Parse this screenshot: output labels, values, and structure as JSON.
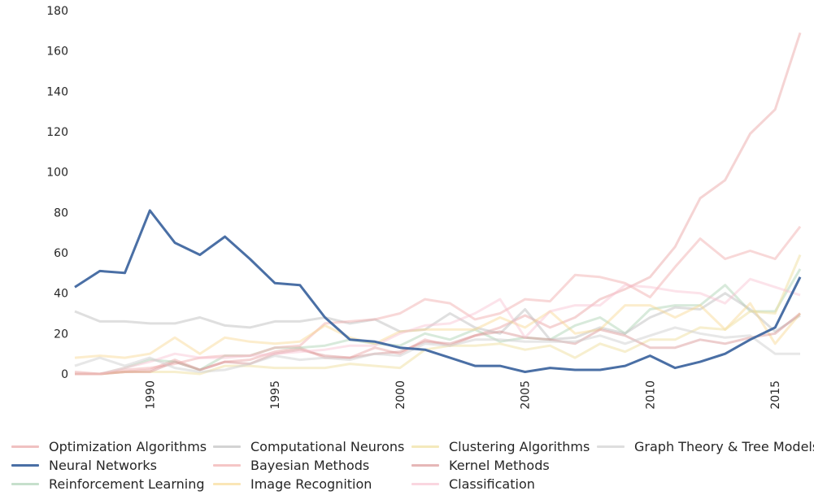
{
  "chart_data": {
    "type": "line",
    "x": [
      1987,
      1988,
      1989,
      1990,
      1991,
      1992,
      1993,
      1994,
      1995,
      1996,
      1997,
      1998,
      1999,
      2000,
      2001,
      2002,
      2003,
      2004,
      2005,
      2006,
      2007,
      2008,
      2009,
      2010,
      2011,
      2012,
      2013,
      2014,
      2015,
      2016
    ],
    "xticks": [
      "1990",
      "1995",
      "2000",
      "2005",
      "2010",
      "2015"
    ],
    "xlim": [
      1987,
      2016
    ],
    "ylim": [
      0,
      180
    ],
    "yticks": [
      "0",
      "20",
      "40",
      "60",
      "80",
      "100",
      "120",
      "140",
      "160",
      "180"
    ],
    "grid": false,
    "legend_position": "bottom",
    "series": [
      {
        "name": "Optimization Algorithms",
        "color": "#e8a0a0",
        "opacity": 0.45,
        "highlight": false,
        "values": [
          1,
          0,
          1,
          2,
          7,
          2,
          6,
          7,
          11,
          13,
          8,
          8,
          13,
          10,
          17,
          14,
          19,
          23,
          29,
          23,
          28,
          37,
          42,
          48,
          63,
          87,
          96,
          119,
          131,
          169
        ]
      },
      {
        "name": "Neural Networks",
        "color": "#4a6fa5",
        "opacity": 1,
        "highlight": true,
        "values": [
          43,
          51,
          50,
          81,
          65,
          59,
          68,
          57,
          45,
          44,
          28,
          17,
          16,
          13,
          12,
          8,
          4,
          4,
          1,
          3,
          2,
          2,
          4,
          9,
          3,
          6,
          10,
          17,
          23,
          48
        ]
      },
      {
        "name": "Reinforcement Learning",
        "color": "#a8d0b0",
        "opacity": 0.45,
        "highlight": false,
        "values": [
          0,
          0,
          3,
          7,
          6,
          2,
          9,
          9,
          13,
          13,
          14,
          17,
          15,
          14,
          20,
          17,
          22,
          16,
          18,
          17,
          24,
          28,
          20,
          32,
          34,
          34,
          44,
          31,
          31,
          52
        ]
      },
      {
        "name": "Computational Neurons",
        "color": "#c0c0c0",
        "opacity": 0.5,
        "highlight": false,
        "values": [
          31,
          26,
          26,
          25,
          25,
          28,
          24,
          23,
          26,
          26,
          28,
          25,
          27,
          21,
          22,
          30,
          23,
          20,
          32,
          17,
          18,
          23,
          20,
          28,
          33,
          32,
          40,
          32,
          21,
          29
        ]
      },
      {
        "name": "Bayesian Methods",
        "color": "#f0a8a8",
        "opacity": 0.45,
        "highlight": false,
        "values": [
          0,
          0,
          2,
          3,
          5,
          8,
          9,
          9,
          13,
          14,
          25,
          26,
          27,
          30,
          37,
          35,
          27,
          30,
          37,
          36,
          49,
          48,
          45,
          38,
          53,
          67,
          57,
          61,
          57,
          73
        ]
      },
      {
        "name": "Image Recognition",
        "color": "#f8d890",
        "opacity": 0.45,
        "highlight": false,
        "values": [
          8,
          9,
          8,
          10,
          18,
          10,
          18,
          16,
          15,
          16,
          24,
          18,
          15,
          21,
          22,
          22,
          22,
          28,
          23,
          31,
          20,
          22,
          34,
          34,
          28,
          34,
          22,
          35,
          15,
          30
        ]
      },
      {
        "name": "Clustering Algorithms",
        "color": "#f0e0a0",
        "opacity": 0.5,
        "highlight": false,
        "values": [
          0,
          0,
          1,
          1,
          1,
          0,
          4,
          4,
          3,
          3,
          3,
          5,
          4,
          3,
          12,
          14,
          14,
          15,
          12,
          14,
          8,
          15,
          11,
          17,
          17,
          23,
          22,
          31,
          30,
          59
        ]
      },
      {
        "name": "Kernel Methods",
        "color": "#d89090",
        "opacity": 0.45,
        "highlight": false,
        "values": [
          0,
          0,
          1,
          1,
          6,
          2,
          6,
          5,
          10,
          12,
          9,
          8,
          10,
          11,
          16,
          15,
          19,
          21,
          18,
          17,
          15,
          22,
          19,
          13,
          13,
          17,
          15,
          18,
          20,
          30
        ]
      },
      {
        "name": "Classification",
        "color": "#f8c0d0",
        "opacity": 0.45,
        "highlight": false,
        "values": [
          0,
          0,
          3,
          6,
          10,
          8,
          8,
          9,
          10,
          11,
          12,
          14,
          14,
          20,
          24,
          25,
          30,
          37,
          18,
          31,
          34,
          34,
          44,
          43,
          41,
          40,
          35,
          47,
          43,
          39
        ]
      },
      {
        "name": "Graph Theory & Tree Models",
        "color": "#d0d0d0",
        "opacity": 0.5,
        "highlight": false,
        "values": [
          4,
          8,
          4,
          8,
          3,
          1,
          2,
          5,
          9,
          7,
          8,
          7,
          10,
          9,
          15,
          14,
          17,
          17,
          16,
          16,
          16,
          19,
          15,
          19,
          23,
          20,
          18,
          19,
          10,
          10
        ]
      }
    ]
  }
}
